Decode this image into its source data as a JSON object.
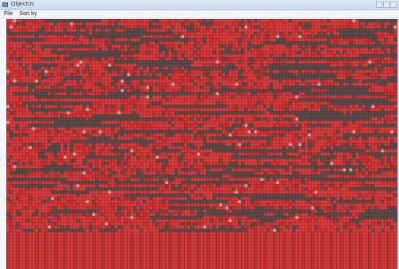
{
  "window": {
    "title": "ObjectUs"
  },
  "menu": {
    "items": [
      {
        "label": "File"
      },
      {
        "label": "Sort by"
      }
    ]
  },
  "grid": {
    "colors": {
      "cell": "#e03a3a",
      "cell_alt": "#cc2f2f",
      "line": "#3a2a2a",
      "dark": "#5a4a4a",
      "light": "#f0a0a0"
    }
  }
}
